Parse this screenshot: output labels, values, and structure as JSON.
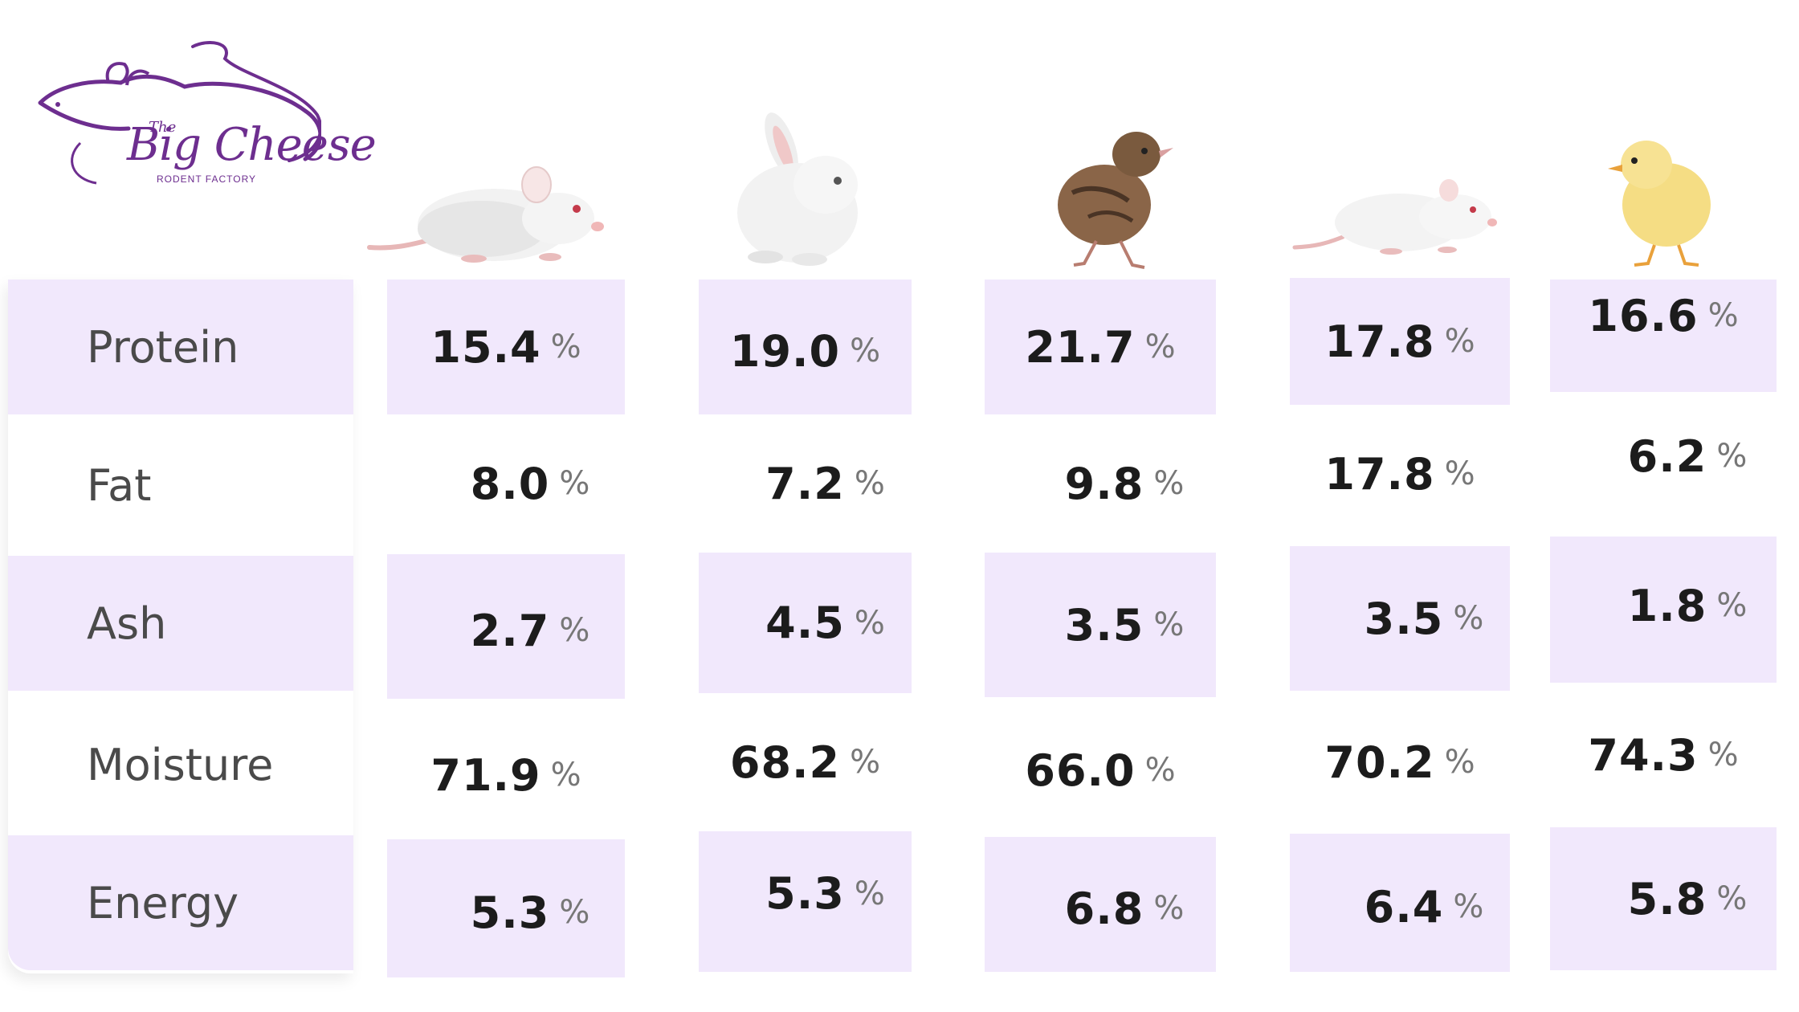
{
  "logo": {
    "the": "The",
    "name": "Big Cheese",
    "subtitle": "RODENT FACTORY"
  },
  "animals": [
    {
      "name": "mouse-image"
    },
    {
      "name": "rabbit-image"
    },
    {
      "name": "quail-chick-image"
    },
    {
      "name": "rat-image"
    },
    {
      "name": "chick-image"
    }
  ],
  "colors": {
    "shaded_row": "#f1e8fc",
    "brand_purple": "#6d2e8f"
  },
  "table": {
    "unit": "%",
    "rows": [
      {
        "label": "Protein",
        "values": [
          "15.4",
          "19.0",
          "21.7",
          "17.8",
          "16.6"
        ]
      },
      {
        "label": "Fat",
        "values": [
          "8.0",
          "7.2",
          "9.8",
          "17.8",
          "6.2"
        ]
      },
      {
        "label": "Ash",
        "values": [
          "2.7",
          "4.5",
          "3.5",
          "3.5",
          "1.8"
        ]
      },
      {
        "label": "Moisture",
        "values": [
          "71.9",
          "68.2",
          "66.0",
          "70.2",
          "74.3"
        ]
      },
      {
        "label": "Energy",
        "values": [
          "5.3",
          "5.3",
          "6.8",
          "6.4",
          "5.8"
        ]
      }
    ]
  }
}
